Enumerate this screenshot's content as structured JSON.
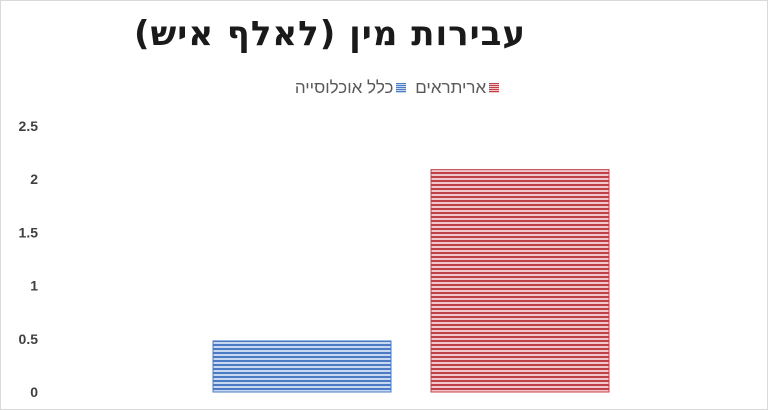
{
  "chart_data": {
    "type": "bar",
    "title": "עבירות מין (לאלף איש)",
    "categories": [
      ""
    ],
    "series": [
      {
        "name": "כלל אוכלוסייה",
        "values": [
          0.48
        ],
        "color": "#4a7bc4"
      },
      {
        "name": "אריתראים",
        "values": [
          2.09
        ],
        "color": "#c0404a"
      }
    ],
    "ylim": [
      0,
      2.5
    ],
    "yticks": [
      "0",
      "0.5",
      "1",
      "1.5",
      "2",
      "2.5"
    ],
    "xlabel": "",
    "ylabel": "",
    "grid": false,
    "legend_position": "top"
  }
}
